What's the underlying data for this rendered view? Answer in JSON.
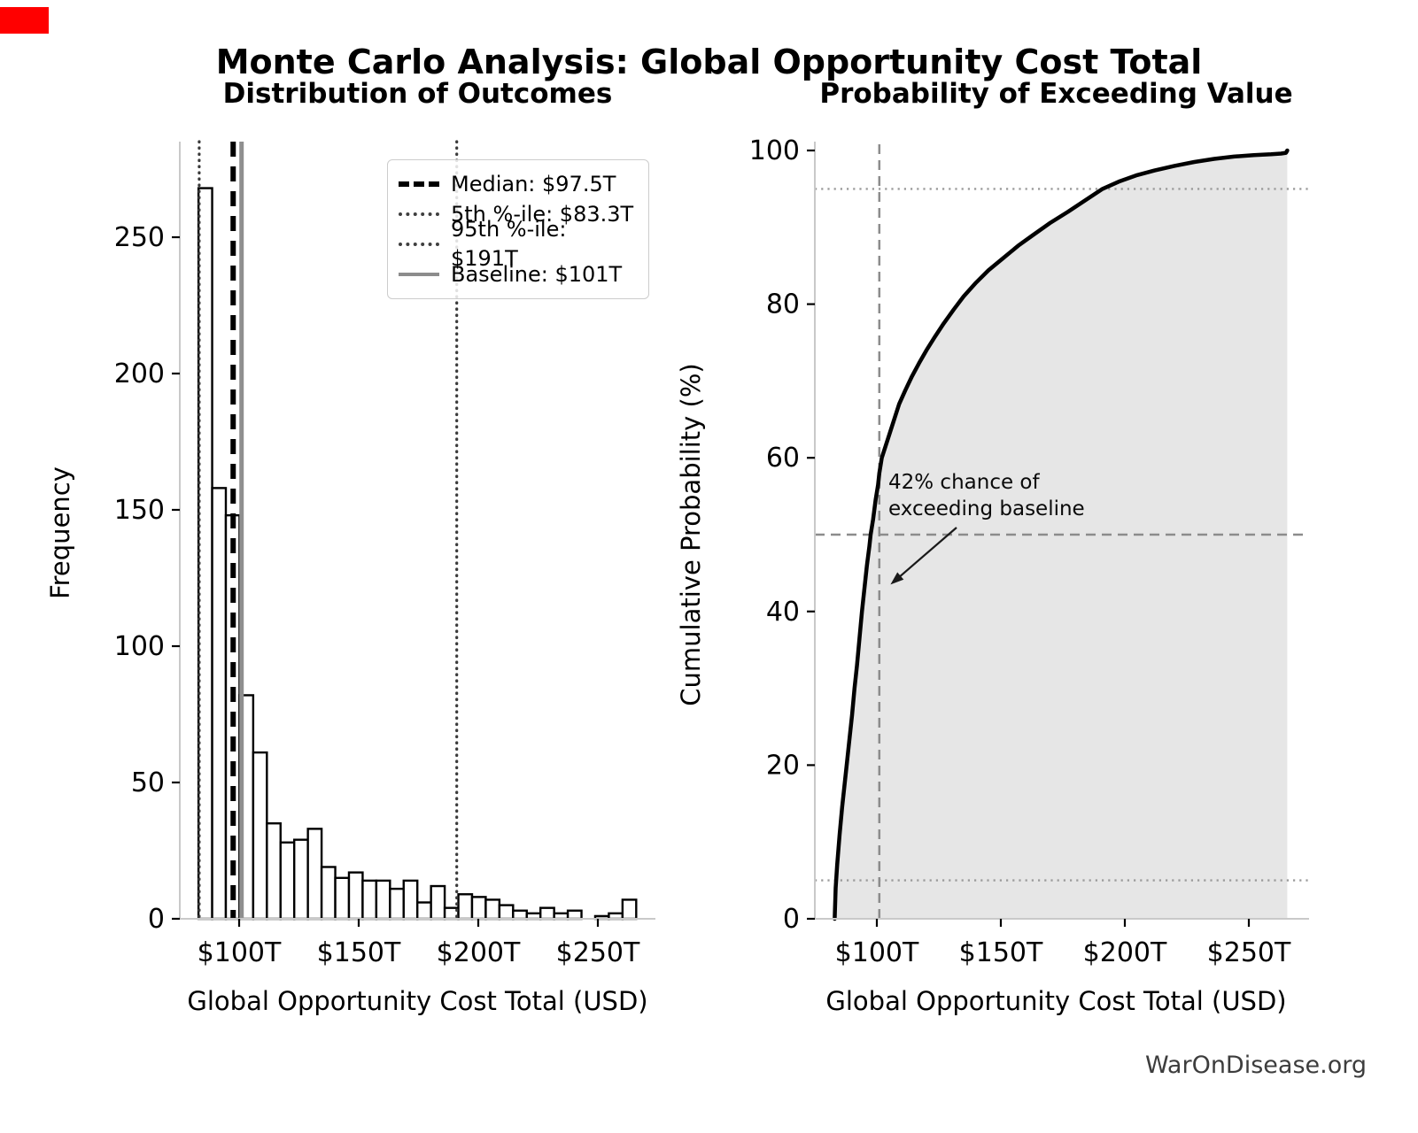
{
  "title": "Monte Carlo Analysis: Global Opportunity Cost Total",
  "watermark": "WarOnDisease.org",
  "colors": {
    "background": "#ffffff",
    "accent_red": "#ff0000",
    "bar_fill": "#ffffff",
    "bar_edge": "#000000",
    "median_line": "#000000",
    "percentile_dotted": "#3a3a3a",
    "baseline_gray": "#8f8f8f",
    "cdf_line": "#000000",
    "cdf_fill": "#e6e6e6",
    "dashed_gray": "#8c8c8c",
    "dotted_light_gray": "#9b9b9b",
    "spine_gray": "#c9c9c9",
    "tick_color": "#000000",
    "watermark_gray": "#3d3d3d"
  },
  "chart_data": [
    {
      "type": "bar",
      "title": "Distribution of Outcomes",
      "xlabel": "Global Opportunity Cost Total (USD)",
      "ylabel": "Frequency",
      "xlim": [
        75,
        274
      ],
      "ylim": [
        0,
        285
      ],
      "grid": false,
      "xtick_values": [
        100,
        150,
        200,
        250
      ],
      "xtick_labels": [
        "$100T",
        "$150T",
        "$200T",
        "$250T"
      ],
      "ytick_values": [
        0,
        50,
        100,
        150,
        200,
        250
      ],
      "ytick_labels": [
        "0",
        "50",
        "100",
        "150",
        "200",
        "250"
      ],
      "bin_start": 83.0,
      "bin_width": 5.72,
      "values": [
        268,
        158,
        148,
        82,
        61,
        35,
        28,
        29,
        33,
        19,
        15,
        17,
        14,
        14,
        11,
        14,
        6,
        12,
        4,
        9,
        8,
        7,
        5,
        3,
        2,
        4,
        2,
        3,
        0,
        1,
        2,
        7
      ],
      "vlines": [
        {
          "name": "5th-percentile",
          "x": 83.3,
          "style": "dotted"
        },
        {
          "name": "median",
          "x": 97.5,
          "style": "dashed-thick"
        },
        {
          "name": "baseline",
          "x": 101,
          "style": "solid-gray"
        },
        {
          "name": "95th-percentile",
          "x": 191,
          "style": "dotted"
        }
      ],
      "legend": {
        "position": "upper right",
        "items": [
          {
            "label": "Median: $97.5T",
            "line": "dashed-thick"
          },
          {
            "label": "5th %-ile: $83.3T",
            "line": "dotted"
          },
          {
            "label": "95th %-ile: $191T",
            "line": "dotted"
          },
          {
            "label": "Baseline: $101T",
            "line": "solid-gray"
          }
        ]
      }
    },
    {
      "type": "line",
      "title": "Probability of Exceeding Value",
      "xlabel": "Global Opportunity Cost Total (USD)",
      "ylabel": "Cumulative Probability (%)",
      "xlim": [
        75,
        274
      ],
      "ylim": [
        0,
        101
      ],
      "grid": false,
      "xtick_values": [
        100,
        150,
        200,
        250
      ],
      "xtick_labels": [
        "$100T",
        "$150T",
        "$200T",
        "$250T"
      ],
      "ytick_values": [
        0,
        20,
        40,
        60,
        80,
        100
      ],
      "ytick_labels": [
        "0",
        "20",
        "40",
        "60",
        "80",
        "100"
      ],
      "fill_under_curve": true,
      "curve": [
        [
          83,
          0
        ],
        [
          83.4,
          4
        ],
        [
          84,
          7
        ],
        [
          85,
          11
        ],
        [
          86,
          14.5
        ],
        [
          87,
          17.5
        ],
        [
          88,
          20.5
        ],
        [
          89,
          23.5
        ],
        [
          90,
          26.5
        ],
        [
          91,
          30
        ],
        [
          92,
          33
        ],
        [
          93,
          36.5
        ],
        [
          94,
          40
        ],
        [
          95,
          43
        ],
        [
          96,
          46
        ],
        [
          97,
          48.5
        ],
        [
          97.5,
          50
        ],
        [
          98.5,
          52
        ],
        [
          99.5,
          54.5
        ],
        [
          100.5,
          56.5
        ],
        [
          101,
          58
        ],
        [
          102,
          60
        ],
        [
          103.5,
          61.5
        ],
        [
          105,
          63
        ],
        [
          107,
          65
        ],
        [
          109,
          67
        ],
        [
          111.5,
          68.8
        ],
        [
          114,
          70.5
        ],
        [
          117,
          72.3
        ],
        [
          120,
          74
        ],
        [
          123.5,
          75.8
        ],
        [
          127,
          77.5
        ],
        [
          131,
          79.3
        ],
        [
          135,
          81
        ],
        [
          140,
          82.8
        ],
        [
          145,
          84.4
        ],
        [
          151,
          86
        ],
        [
          157,
          87.6
        ],
        [
          163,
          89
        ],
        [
          170,
          90.6
        ],
        [
          177,
          92
        ],
        [
          184,
          93.5
        ],
        [
          191,
          95
        ],
        [
          198,
          96
        ],
        [
          205,
          96.8
        ],
        [
          212,
          97.4
        ],
        [
          220,
          98
        ],
        [
          228,
          98.5
        ],
        [
          236,
          98.9
        ],
        [
          244,
          99.2
        ],
        [
          252,
          99.4
        ],
        [
          259,
          99.5
        ],
        [
          263,
          99.6
        ],
        [
          265,
          99.7
        ],
        [
          265.5,
          100
        ]
      ],
      "hlines": [
        {
          "name": "95-percent-marker",
          "y": 95,
          "style": "dotted"
        },
        {
          "name": "50-percent-marker",
          "y": 50,
          "style": "dashed"
        },
        {
          "name": "5-percent-marker",
          "y": 5,
          "style": "dotted"
        }
      ],
      "vlines": [
        {
          "name": "baseline",
          "x": 101,
          "style": "dashed"
        }
      ],
      "annotation": {
        "text": "42% chance of\nexceeding baseline",
        "value_pct": 42,
        "arrow_target": [
          105.5,
          43.5
        ]
      }
    }
  ]
}
